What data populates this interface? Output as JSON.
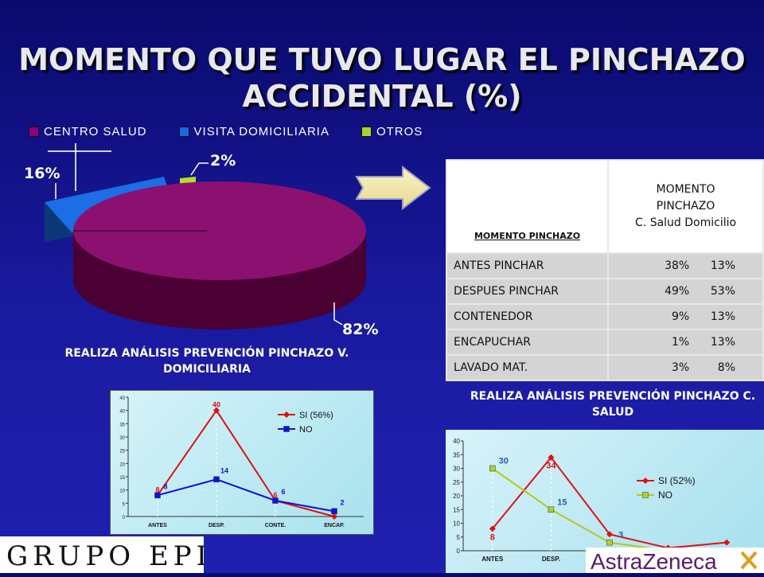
{
  "title": "MOMENTO QUE TUVO LUGAR EL PINCHAZO ACCIDENTAL (%)",
  "colors": {
    "centro_salud": "#8b0080",
    "visita_domiciliaria": "#1a66e0",
    "otros": "#a8d430",
    "si_line": "#e01010",
    "no_line_1": "#1010e0",
    "no_line_2": "#b4c820"
  },
  "pie": {
    "legend": [
      {
        "label": "CENTRO SALUD",
        "color": "#8b0080"
      },
      {
        "label": "VISITA DOMICILIARIA",
        "color": "#1a66e0"
      },
      {
        "label": "OTROS",
        "color": "#a8d430"
      }
    ],
    "labels": [
      "82%",
      "16%",
      "2%"
    ]
  },
  "table": {
    "header_left": "MOMENTO PINCHAZO",
    "header_right": [
      "MOMENTO",
      "PINCHAZO",
      "C. Salud  Domicilio"
    ],
    "rows": [
      {
        "label": "ANTES PINCHAR",
        "values": "38%      13%"
      },
      {
        "label": "DESPUES PINCHAR",
        "values": "49%      53%"
      },
      {
        "label": "CONTENEDOR",
        "values": "9%      13%"
      },
      {
        "label": "ENCAPUCHAR",
        "values": "1%      13%"
      },
      {
        "label": "LAVADO MAT.",
        "values": "3%        8%"
      }
    ]
  },
  "subtitle_domicilio": "REALIZA ANÁLISIS PREVENCIÓN PINCHAZO V. DOMICILIARIA",
  "subtitle_salud": "REALIZA ANÁLISIS PREVENCIÓN PINCHAZO C. SALUD",
  "chart_data": [
    {
      "type": "pie",
      "categories": [
        "CENTRO SALUD",
        "VISITA DOMICILIARIA",
        "OTROS"
      ],
      "values": [
        82,
        16,
        2
      ],
      "title": ""
    },
    {
      "type": "line",
      "title": "REALIZA ANÁLISIS PREVENCIÓN PINCHAZO V. DOMICILIARIA",
      "categories": [
        "ANTES",
        "DESP.",
        "CONTE.",
        "ENCAP."
      ],
      "series": [
        {
          "name": "SI (56%)",
          "values": [
            8,
            40,
            6,
            0
          ]
        },
        {
          "name": "NO",
          "values": [
            8,
            14,
            6,
            2
          ]
        }
      ],
      "ylim": [
        0,
        45
      ],
      "yticks": [
        0,
        5,
        10,
        15,
        20,
        25,
        30,
        35,
        40,
        45
      ],
      "legend": "top-right",
      "labels_si": [
        "8",
        "40",
        "6",
        ""
      ],
      "labels_no": [
        "8",
        "14",
        "6",
        "2"
      ]
    },
    {
      "type": "line",
      "title": "REALIZA ANÁLISIS PREVENCIÓN PINCHAZO C. SALUD",
      "categories": [
        "ANTES",
        "DESP.",
        "",
        "",
        ""
      ],
      "series": [
        {
          "name": "SI (52%)",
          "values": [
            8,
            34,
            6,
            1,
            3
          ]
        },
        {
          "name": "NO",
          "values": [
            30,
            15,
            3,
            0,
            0
          ]
        }
      ],
      "ylim": [
        0,
        40
      ],
      "yticks": [
        0,
        5,
        10,
        15,
        20,
        25,
        30,
        35,
        40
      ],
      "legend": "right",
      "labels_si": [
        "8",
        "34",
        "6",
        "1",
        "3"
      ],
      "labels_no": [
        "30",
        "15",
        "3",
        "",
        ""
      ]
    }
  ],
  "logos": {
    "left": "GRUPO EPISTÉME",
    "right": "AstraZeneca"
  }
}
